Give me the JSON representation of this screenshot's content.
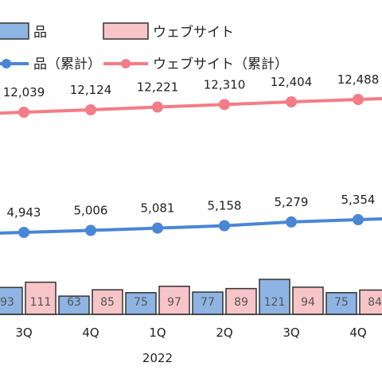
{
  "chart_data": {
    "type": "bar+line",
    "legend": {
      "placement": "top",
      "entries": [
        {
          "label": "品",
          "marker": "bar",
          "series": "product_new"
        },
        {
          "label": "ウェブサイト",
          "marker": "bar",
          "series": "website_new"
        },
        {
          "label": "品（累計）",
          "marker": "line",
          "series": "product_cumulative"
        },
        {
          "label": "ウェブサイト（累計）",
          "marker": "line",
          "series": "website_cumulative"
        }
      ]
    },
    "x": {
      "categories": [
        "3Q",
        "4Q",
        "1Q",
        "2Q",
        "3Q",
        "4Q"
      ],
      "year_labels": [
        {
          "text": "2022",
          "category_index": 2
        }
      ]
    },
    "bars": [
      {
        "name": "product_new",
        "color": "#8eb4e3",
        "values": [
          93,
          63,
          75,
          77,
          121,
          75
        ],
        "labels": [
          "93",
          "63",
          "75",
          "77",
          "121",
          "75"
        ]
      },
      {
        "name": "website_new",
        "color": "#f7c4c8",
        "values": [
          111,
          85,
          97,
          89,
          94,
          84
        ],
        "labels": [
          "111",
          "85",
          "97",
          "89",
          "94",
          "84"
        ]
      }
    ],
    "lines": [
      {
        "name": "website_cumulative",
        "color": "#f47c86",
        "values": [
          12039,
          12124,
          12221,
          12310,
          12404,
          12488
        ],
        "labels": [
          "12,039",
          "12,124",
          "12,221",
          "12,310",
          "12,404",
          "12,488"
        ]
      },
      {
        "name": "product_cumulative",
        "color": "#4a86d6",
        "values": [
          4943,
          5006,
          5081,
          5158,
          5279,
          5354
        ],
        "labels": [
          "4,943",
          "5,006",
          "5,081",
          "5,158",
          "5,279",
          "5,354"
        ]
      }
    ]
  }
}
